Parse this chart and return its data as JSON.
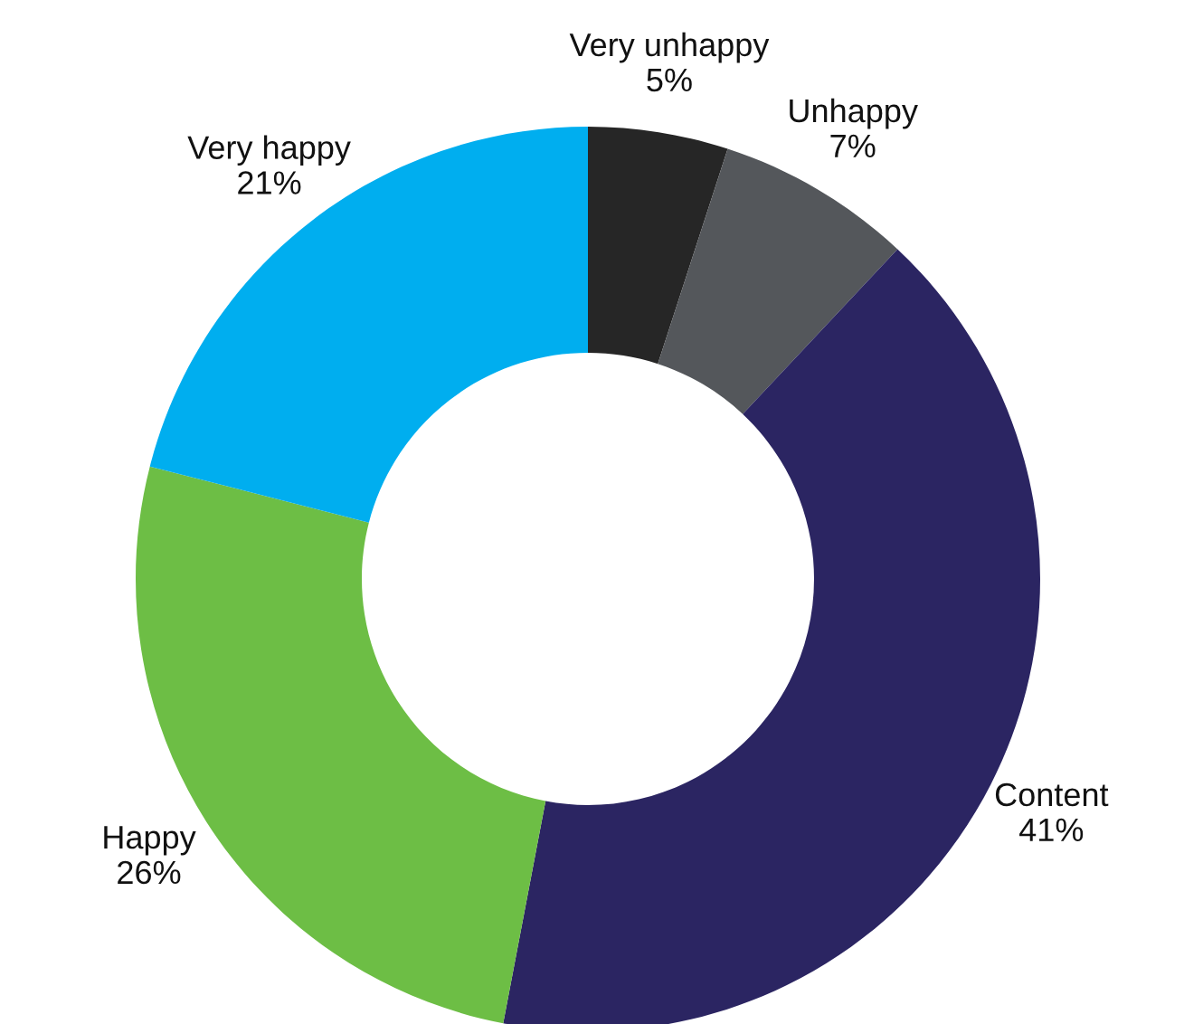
{
  "chart_data": {
    "type": "donut",
    "categories": [
      "Very unhappy",
      "Unhappy",
      "Content",
      "Happy",
      "Very happy"
    ],
    "values": [
      5,
      7,
      41,
      26,
      21
    ],
    "value_labels": [
      "5%",
      "7%",
      "41%",
      "26%",
      "21%"
    ],
    "colors": [
      "#262626",
      "#54575b",
      "#2b2562",
      "#6dbe45",
      "#00aeef"
    ],
    "legend": false
  }
}
